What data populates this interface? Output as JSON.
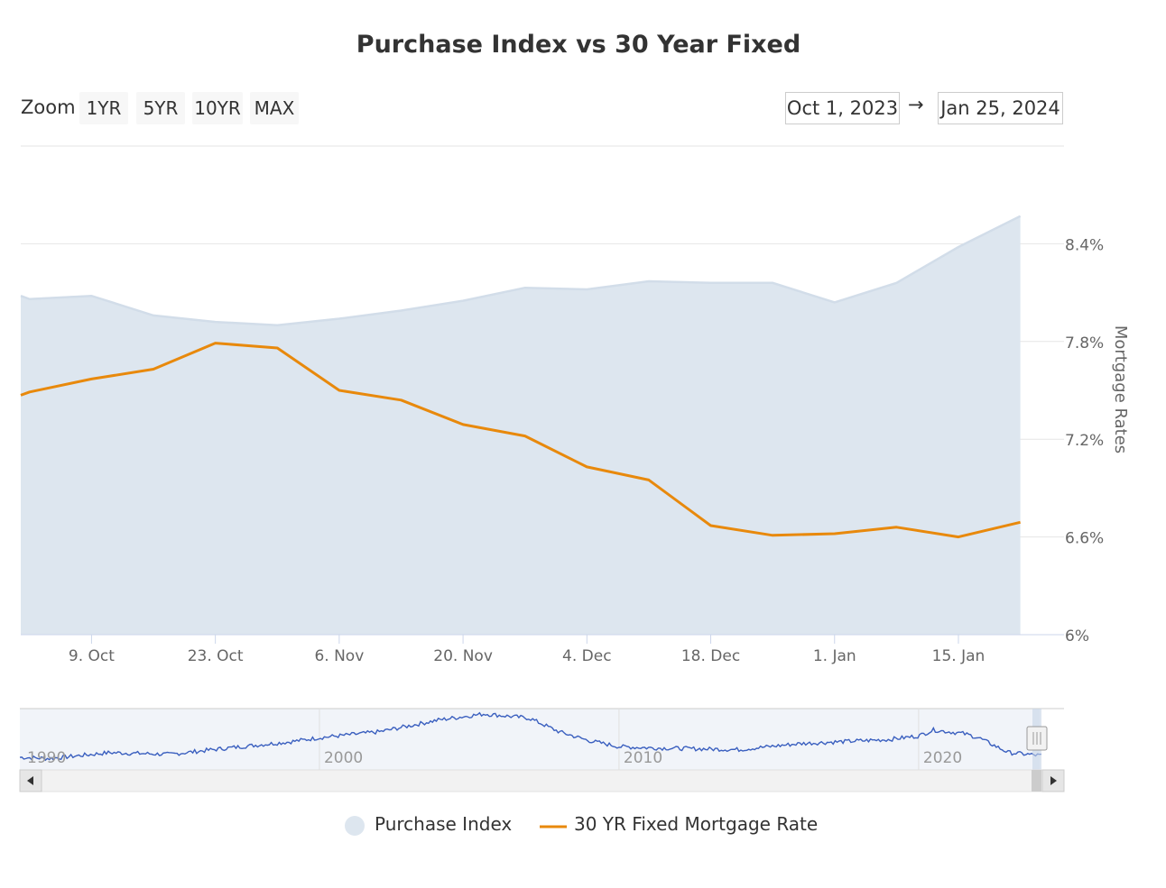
{
  "title": "Purchase Index vs 30 Year Fixed",
  "zoom": {
    "label": "Zoom",
    "buttons": [
      "1YR",
      "5YR",
      "10YR",
      "MAX"
    ]
  },
  "range": {
    "from": "Oct 1, 2023",
    "arrow": "→",
    "to": "Jan 25, 2024"
  },
  "colors": {
    "area_fill": "#dde6ef",
    "area_line": "#d2dde9",
    "rate_line": "#e8890c",
    "navigator_line": "#3a5fbf"
  },
  "legend": {
    "area": "Purchase Index",
    "line": "30 YR Fixed Mortgage Rate"
  },
  "chart_data": {
    "type": "line",
    "title": "Purchase Index vs 30 Year Fixed",
    "x_labels": [
      "9. Oct",
      "23. Oct",
      "6. Nov",
      "20. Nov",
      "4. Dec",
      "18. Dec",
      "1. Jan",
      "15. Jan"
    ],
    "x_label_days": [
      8,
      22,
      36,
      50,
      64,
      78,
      92,
      106
    ],
    "y_axis": {
      "label": "Mortgage Rates",
      "ticks": [
        "6%",
        "6.6%",
        "7.2%",
        "7.8%",
        "8.4%"
      ],
      "tick_values": [
        6.0,
        6.6,
        7.2,
        7.8,
        8.4
      ],
      "range": [
        6.0,
        9.0
      ]
    },
    "x_range_days": [
      0,
      116
    ],
    "series": [
      {
        "name": "Purchase Index",
        "kind": "area",
        "days": [
          0,
          1,
          8,
          15,
          22,
          29,
          36,
          43,
          50,
          57,
          64,
          71,
          78,
          85,
          92,
          99,
          106,
          113
        ],
        "rate_scale": [
          8.08,
          8.06,
          8.08,
          7.96,
          7.92,
          7.9,
          7.94,
          7.99,
          8.05,
          8.13,
          8.12,
          8.17,
          8.16,
          8.16,
          8.04,
          8.16,
          8.38,
          8.57
        ]
      },
      {
        "name": "30 YR Fixed Mortgage Rate",
        "kind": "line",
        "days": [
          0,
          1,
          8,
          15,
          22,
          29,
          36,
          43,
          50,
          57,
          64,
          71,
          78,
          85,
          92,
          99,
          106,
          113
        ],
        "values": [
          7.47,
          7.49,
          7.57,
          7.63,
          7.79,
          7.76,
          7.5,
          7.44,
          7.29,
          7.22,
          7.03,
          6.95,
          6.67,
          6.61,
          6.62,
          6.66,
          6.6,
          6.69
        ]
      }
    ],
    "navigator": {
      "year_labels": [
        "1990",
        "2000",
        "2010",
        "2020"
      ],
      "year_range": [
        1990,
        2024.1
      ]
    }
  }
}
